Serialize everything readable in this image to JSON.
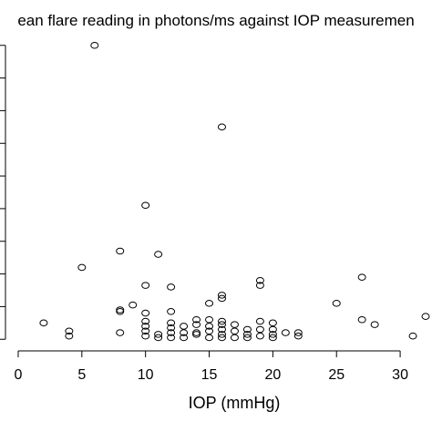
{
  "chart_data": {
    "type": "scatter",
    "title": "ean flare reading in photons/ms against IOP measuremen",
    "xlabel": "IOP (mmHg)",
    "ylabel": "",
    "xlim": [
      -1,
      32.5
    ],
    "x_ticks": [
      0,
      5,
      10,
      15,
      20,
      25,
      30
    ],
    "x_tick_labels": [
      "0",
      "5",
      "10",
      "15",
      "20",
      "25",
      "30"
    ],
    "ylim": [
      -0.3,
      9.3
    ],
    "y_ticks": [
      0,
      1,
      2,
      3,
      4,
      5,
      6,
      7,
      8,
      9
    ],
    "grid": false,
    "legend": "none",
    "marker": "open-circle",
    "series": [
      {
        "points": [
          {
            "x": 2,
            "y": 0.5
          },
          {
            "x": 4,
            "y": 0.25
          },
          {
            "x": 4,
            "y": 0.1
          },
          {
            "x": 5,
            "y": 2.2
          },
          {
            "x": 6,
            "y": 9.0
          },
          {
            "x": 8,
            "y": 2.7
          },
          {
            "x": 8,
            "y": 0.85
          },
          {
            "x": 8,
            "y": 0.9
          },
          {
            "x": 8,
            "y": 0.2
          },
          {
            "x": 9,
            "y": 1.05
          },
          {
            "x": 10,
            "y": 4.1
          },
          {
            "x": 10,
            "y": 1.65
          },
          {
            "x": 10,
            "y": 0.8
          },
          {
            "x": 10,
            "y": 0.55
          },
          {
            "x": 10,
            "y": 0.4
          },
          {
            "x": 10,
            "y": 0.25
          },
          {
            "x": 10,
            "y": 0.1
          },
          {
            "x": 11,
            "y": 2.6
          },
          {
            "x": 11,
            "y": 0.15
          },
          {
            "x": 11,
            "y": 0.05
          },
          {
            "x": 12,
            "y": 1.6
          },
          {
            "x": 12,
            "y": 0.85
          },
          {
            "x": 12,
            "y": 0.5
          },
          {
            "x": 12,
            "y": 0.35
          },
          {
            "x": 12,
            "y": 0.2
          },
          {
            "x": 12,
            "y": 0.05
          },
          {
            "x": 13,
            "y": 0.4
          },
          {
            "x": 13,
            "y": 0.2
          },
          {
            "x": 13,
            "y": 0.05
          },
          {
            "x": 14,
            "y": 0.45
          },
          {
            "x": 14,
            "y": 0.2
          },
          {
            "x": 14,
            "y": 0.15
          },
          {
            "x": 14,
            "y": 0.6
          },
          {
            "x": 15,
            "y": 1.1
          },
          {
            "x": 15,
            "y": 0.6
          },
          {
            "x": 15,
            "y": 0.4
          },
          {
            "x": 15,
            "y": 0.25
          },
          {
            "x": 15,
            "y": 0.05
          },
          {
            "x": 16,
            "y": 6.5
          },
          {
            "x": 16,
            "y": 1.35
          },
          {
            "x": 16,
            "y": 1.25
          },
          {
            "x": 16,
            "y": 0.55
          },
          {
            "x": 16,
            "y": 0.45
          },
          {
            "x": 16,
            "y": 0.3
          },
          {
            "x": 16,
            "y": 0.15
          },
          {
            "x": 16,
            "y": 0.05
          },
          {
            "x": 17,
            "y": 0.45
          },
          {
            "x": 17,
            "y": 0.25
          },
          {
            "x": 17,
            "y": 0.05
          },
          {
            "x": 18,
            "y": 0.3
          },
          {
            "x": 18,
            "y": 0.15
          },
          {
            "x": 18,
            "y": 0.05
          },
          {
            "x": 19,
            "y": 1.8
          },
          {
            "x": 19,
            "y": 1.65
          },
          {
            "x": 19,
            "y": 0.55
          },
          {
            "x": 19,
            "y": 0.3
          },
          {
            "x": 19,
            "y": 0.1
          },
          {
            "x": 20,
            "y": 0.5
          },
          {
            "x": 20,
            "y": 0.3
          },
          {
            "x": 20,
            "y": 0.15
          },
          {
            "x": 20,
            "y": 0.05
          },
          {
            "x": 21,
            "y": 0.2
          },
          {
            "x": 22,
            "y": 0.2
          },
          {
            "x": 22,
            "y": 0.1
          },
          {
            "x": 25,
            "y": 1.1
          },
          {
            "x": 27,
            "y": 1.9
          },
          {
            "x": 27,
            "y": 0.6
          },
          {
            "x": 28,
            "y": 0.45
          },
          {
            "x": 31,
            "y": 0.1
          },
          {
            "x": 32,
            "y": 0.7
          }
        ]
      }
    ]
  }
}
